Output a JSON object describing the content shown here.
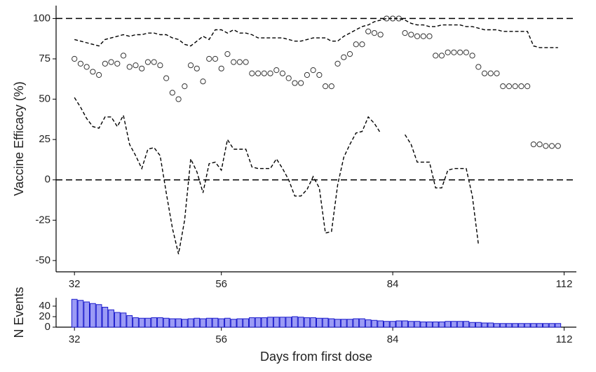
{
  "chart_data": [
    {
      "type": "line",
      "ylabel": "Vaccine Efficacy (%)",
      "x": [
        32,
        33,
        34,
        35,
        36,
        37,
        38,
        39,
        40,
        41,
        42,
        43,
        44,
        45,
        46,
        47,
        48,
        49,
        50,
        51,
        52,
        53,
        54,
        55,
        56,
        57,
        58,
        59,
        60,
        61,
        62,
        63,
        64,
        65,
        66,
        67,
        68,
        69,
        70,
        71,
        72,
        73,
        74,
        75,
        76,
        77,
        78,
        79,
        80,
        81,
        82,
        83,
        84,
        85,
        86,
        87,
        88,
        89,
        90,
        91,
        92,
        93,
        94,
        95,
        96,
        97,
        98,
        99,
        100,
        101,
        102,
        103,
        104,
        105,
        106,
        107,
        108,
        109,
        110,
        111
      ],
      "series": [
        {
          "style": "points",
          "color": "#333333",
          "values": [
            75,
            72,
            70,
            67,
            65,
            72,
            73,
            72,
            77,
            70,
            71,
            69,
            73,
            73,
            71,
            63,
            54,
            50,
            58,
            71,
            69,
            61,
            75,
            75,
            69,
            78,
            73,
            73,
            73,
            66,
            66,
            66,
            66,
            68,
            66,
            63,
            60,
            60,
            65,
            68,
            65,
            58,
            58,
            72,
            76,
            78,
            84,
            84,
            92,
            91,
            90,
            100,
            100,
            100,
            91,
            90,
            89,
            89,
            89,
            77,
            77,
            79,
            79,
            79,
            79,
            77,
            70,
            66,
            66,
            66,
            58,
            58,
            58,
            58,
            58,
            22,
            22,
            21,
            21,
            21
          ]
        },
        {
          "style": "dashed",
          "color": "#000000",
          "values": [
            87,
            86,
            85,
            84,
            83,
            87,
            88,
            89,
            90,
            89,
            90,
            90,
            91,
            91,
            90,
            90,
            88,
            87,
            84,
            83,
            86,
            89,
            87,
            93,
            93,
            91,
            93,
            91,
            91,
            90,
            88,
            88,
            88,
            88,
            88,
            87,
            86,
            86,
            87,
            88,
            88,
            88,
            86,
            86,
            89,
            91,
            93,
            95,
            96,
            98,
            99,
            100,
            100,
            100,
            99,
            97,
            96,
            96,
            95,
            95,
            96,
            96,
            96,
            96,
            95,
            95,
            94,
            93,
            93,
            93,
            92,
            92,
            92,
            92,
            92,
            83,
            82,
            82,
            82,
            82
          ]
        },
        {
          "style": "dashed",
          "color": "#000000",
          "values": [
            51,
            45,
            38,
            33,
            32,
            39,
            39,
            33,
            40,
            22,
            15,
            7,
            19,
            20,
            15,
            -8,
            -30,
            -46,
            -25,
            13,
            5,
            -8,
            10,
            11,
            6,
            25,
            19,
            19,
            19,
            8,
            7,
            7,
            7,
            13,
            7,
            0,
            -10,
            -10,
            -6,
            2,
            -5,
            -33,
            -32,
            -3,
            14,
            22,
            29,
            30,
            39,
            35,
            29,
            null,
            null,
            null,
            28,
            22,
            11,
            11,
            11,
            -5,
            -5,
            6,
            7,
            7,
            7,
            -10,
            -40,
            null,
            null,
            null,
            null,
            null,
            null,
            null,
            null,
            null,
            null,
            null,
            null,
            null
          ]
        }
      ],
      "hlines": [
        100,
        0
      ],
      "xlim": [
        29,
        114
      ],
      "xticks": [
        32,
        56,
        84,
        112
      ],
      "ylim": [
        -57,
        108
      ],
      "yticks": [
        -50,
        -25,
        0,
        25,
        50,
        75,
        100
      ]
    },
    {
      "type": "bar",
      "ylabel": "N Events",
      "xlabel": "Days from first dose",
      "x": [
        32,
        33,
        34,
        35,
        36,
        37,
        38,
        39,
        40,
        41,
        42,
        43,
        44,
        45,
        46,
        47,
        48,
        49,
        50,
        51,
        52,
        53,
        54,
        55,
        56,
        57,
        58,
        59,
        60,
        61,
        62,
        63,
        64,
        65,
        66,
        67,
        68,
        69,
        70,
        71,
        72,
        73,
        74,
        75,
        76,
        77,
        78,
        79,
        80,
        81,
        82,
        83,
        84,
        85,
        86,
        87,
        88,
        89,
        90,
        91,
        92,
        93,
        94,
        95,
        96,
        97,
        98,
        99,
        100,
        101,
        102,
        103,
        104,
        105,
        106,
        107,
        108,
        109,
        110,
        111
      ],
      "values": [
        53,
        51,
        48,
        45,
        43,
        38,
        33,
        28,
        27,
        22,
        18,
        17,
        17,
        18,
        18,
        17,
        16,
        16,
        15,
        16,
        17,
        16,
        17,
        17,
        16,
        17,
        15,
        16,
        16,
        18,
        18,
        18,
        19,
        19,
        19,
        19,
        20,
        19,
        18,
        18,
        17,
        17,
        16,
        15,
        15,
        15,
        16,
        16,
        14,
        13,
        12,
        11,
        11,
        12,
        12,
        11,
        11,
        10,
        10,
        10,
        10,
        11,
        11,
        11,
        11,
        9,
        9,
        8,
        8,
        7,
        7,
        7,
        7,
        7,
        7,
        7,
        7,
        7,
        7,
        7
      ],
      "color": "#9b9bf5",
      "edge": "#1a1acc",
      "xlim": [
        29,
        114
      ],
      "xticks": [
        32,
        56,
        84,
        112
      ],
      "ylim": [
        0,
        56
      ],
      "yticks": [
        0,
        20,
        40
      ]
    }
  ]
}
